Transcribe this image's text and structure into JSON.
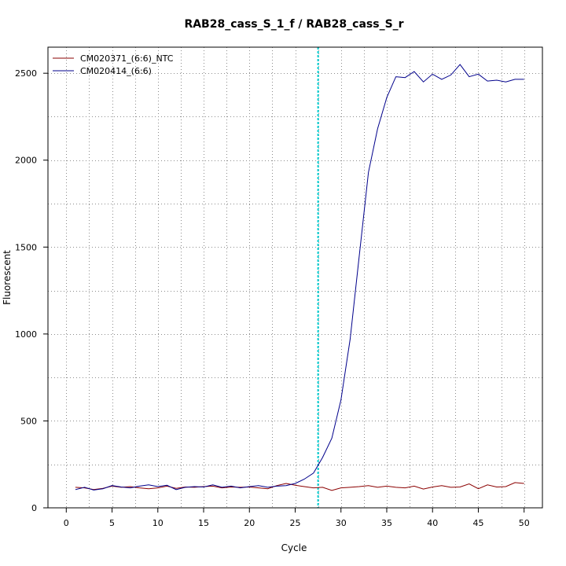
{
  "chart_data": {
    "type": "line",
    "title": "RAB28_cass_S_1_f / RAB28_cass_S_r",
    "xlabel": "Cycle",
    "ylabel": "Fluorescent",
    "xlim": [
      -2,
      52
    ],
    "ylim": [
      0,
      2650
    ],
    "x_ticks": [
      0,
      5,
      10,
      15,
      20,
      25,
      30,
      35,
      40,
      45,
      50
    ],
    "y_ticks": [
      0,
      500,
      1000,
      1500,
      2000,
      2500
    ],
    "x_minor_grid": [
      2.5,
      7.5,
      12.5,
      17.5,
      22.5,
      27.5,
      32.5,
      37.5,
      42.5,
      47.5
    ],
    "y_minor_grid": [
      250,
      750,
      1250,
      1750,
      2250
    ],
    "grid": true,
    "legend_position": "top-left",
    "threshold_cycle": 27.5,
    "threshold_color": "#00ced1",
    "series": [
      {
        "name": "CM020371_(6:6)_NTC",
        "color": "#8b0000",
        "x": [
          1,
          2,
          3,
          4,
          5,
          6,
          7,
          8,
          9,
          10,
          11,
          12,
          13,
          14,
          15,
          16,
          17,
          18,
          19,
          20,
          21,
          22,
          23,
          24,
          25,
          26,
          27,
          28,
          29,
          30,
          31,
          32,
          33,
          34,
          35,
          36,
          37,
          38,
          39,
          40,
          41,
          42,
          43,
          44,
          45,
          46,
          47,
          48,
          49,
          50
        ],
        "values": [
          118,
          115,
          105,
          112,
          125,
          118,
          122,
          115,
          110,
          115,
          125,
          112,
          120,
          118,
          122,
          125,
          115,
          120,
          118,
          120,
          115,
          110,
          128,
          140,
          130,
          122,
          115,
          118,
          100,
          115,
          118,
          122,
          128,
          118,
          125,
          118,
          115,
          125,
          108,
          120,
          128,
          118,
          120,
          138,
          110,
          132,
          120,
          122,
          145,
          140
        ]
      },
      {
        "name": "CM020414_(6:6)",
        "color": "#00008b",
        "x": [
          1,
          2,
          3,
          4,
          5,
          6,
          7,
          8,
          9,
          10,
          11,
          12,
          13,
          14,
          15,
          16,
          17,
          18,
          19,
          20,
          21,
          22,
          23,
          24,
          25,
          26,
          27,
          28,
          29,
          30,
          31,
          32,
          33,
          34,
          35,
          36,
          37,
          38,
          39,
          40,
          41,
          42,
          43,
          44,
          45,
          46,
          47,
          48,
          49,
          50
        ],
        "values": [
          105,
          118,
          102,
          110,
          128,
          120,
          115,
          125,
          132,
          122,
          130,
          105,
          118,
          122,
          120,
          132,
          118,
          125,
          115,
          122,
          128,
          118,
          125,
          128,
          140,
          165,
          200,
          290,
          400,
          620,
          970,
          1450,
          1930,
          2180,
          2360,
          2480,
          2475,
          2510,
          2450,
          2495,
          2465,
          2490,
          2550,
          2480,
          2495,
          2455,
          2460,
          2450,
          2465,
          2465
        ]
      }
    ]
  }
}
